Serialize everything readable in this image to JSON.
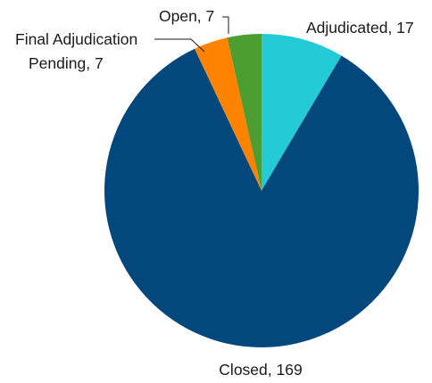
{
  "chart_data": {
    "type": "pie",
    "title": "",
    "slices": [
      {
        "name": "Adjudicated",
        "value": 17,
        "color": "#23CBD6",
        "label": "Adjudicated, 17"
      },
      {
        "name": "Closed",
        "value": 169,
        "color": "#03487D",
        "label": "Closed, 169"
      },
      {
        "name": "Final Adjudication Pending",
        "value": 7,
        "color": "#FF8200",
        "label_lines": [
          "Final Adjudication",
          "Pending, 7"
        ]
      },
      {
        "name": "Open",
        "value": 7,
        "color": "#4D9E32",
        "label": "Open, 7"
      }
    ],
    "legend": "none",
    "start_angle": "12 o'clock",
    "direction": "clockwise"
  }
}
